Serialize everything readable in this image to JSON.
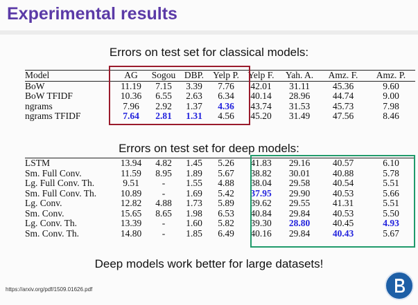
{
  "slide": {
    "title": "Experimental results",
    "subtitle_classical": "Errors on test set for classical models:",
    "subtitle_deep": "Errors on test set for deep models:",
    "conclusion": "Deep models work better for large datasets!",
    "reference": "https://arxiv.org/pdf/1509.01626.pdf"
  },
  "classical_table": {
    "headers": [
      "Model",
      "AG",
      "Sogou",
      "DBP.",
      "Yelp P.",
      "Yelp F.",
      "Yah. A.",
      "Amz. F.",
      "Amz. P."
    ],
    "rows": [
      [
        "BoW",
        "11.19",
        "7.15",
        "3.39",
        "7.76",
        "42.01",
        "31.11",
        "45.36",
        "9.60"
      ],
      [
        "BoW TFIDF",
        "10.36",
        "6.55",
        "2.63",
        "6.34",
        "40.14",
        "28.96",
        "44.74",
        "9.00"
      ],
      [
        "ngrams",
        "7.96",
        "2.92",
        "1.37",
        "4.36",
        "43.74",
        "31.53",
        "45.73",
        "7.98"
      ],
      [
        "ngrams TFIDF",
        "7.64",
        "2.81",
        "1.31",
        "4.56",
        "45.20",
        "31.49",
        "47.56",
        "8.46"
      ]
    ]
  },
  "deep_table": {
    "rows": [
      [
        "LSTM",
        "13.94",
        "4.82",
        "1.45",
        "5.26",
        "41.83",
        "29.16",
        "40.57",
        "6.10"
      ],
      [
        "Sm. Full Conv.",
        "11.59",
        "8.95",
        "1.89",
        "5.67",
        "38.82",
        "30.01",
        "40.88",
        "5.78"
      ],
      [
        "Lg. Full Conv. Th.",
        "9.51",
        "-",
        "1.55",
        "4.88",
        "38.04",
        "29.58",
        "40.54",
        "5.51"
      ],
      [
        "Sm. Full Conv. Th.",
        "10.89",
        "-",
        "1.69",
        "5.42",
        "37.95",
        "29.90",
        "40.53",
        "5.66"
      ],
      [
        "Lg. Conv.",
        "12.82",
        "4.88",
        "1.73",
        "5.89",
        "39.62",
        "29.55",
        "41.31",
        "5.51"
      ],
      [
        "Sm. Conv.",
        "15.65",
        "8.65",
        "1.98",
        "6.53",
        "40.84",
        "29.84",
        "40.53",
        "5.50"
      ],
      [
        "Lg. Conv. Th.",
        "13.39",
        "-",
        "1.60",
        "5.82",
        "39.30",
        "28.80",
        "40.45",
        "4.93"
      ],
      [
        "Sm. Conv. Th.",
        "14.80",
        "-",
        "1.85",
        "6.49",
        "40.16",
        "29.84",
        "40.43",
        "5.67"
      ]
    ]
  },
  "colors": {
    "title": "#5b3aa7",
    "highlight_best": "#2222dd",
    "box_classical": "#9a1b2c",
    "box_deep": "#1f9a6a",
    "logo": "#1d5fa6"
  }
}
